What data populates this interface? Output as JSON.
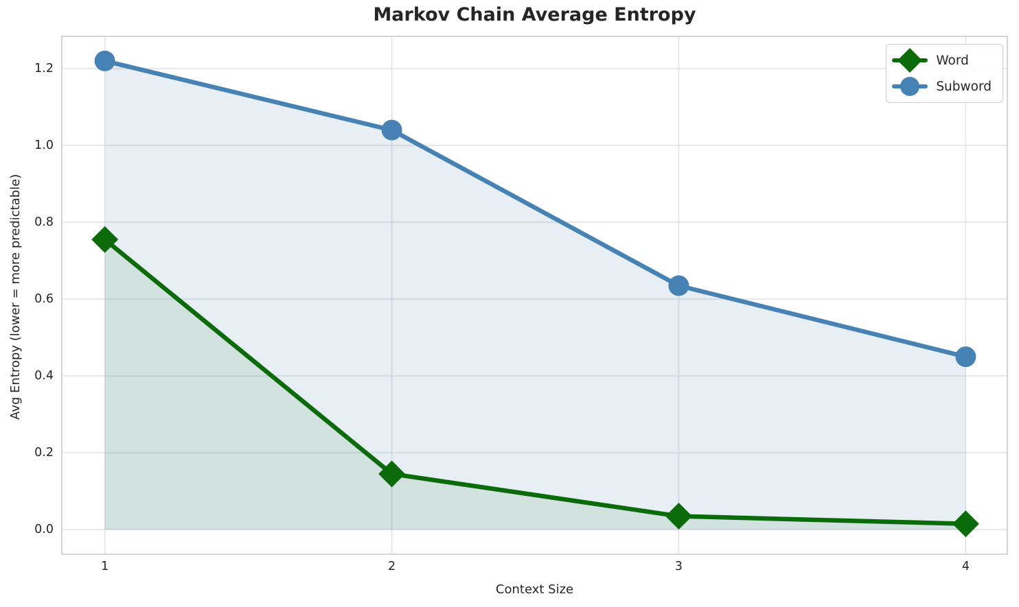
{
  "chart_data": {
    "type": "line",
    "title": "Markov Chain Average Entropy",
    "xlabel": "Context Size",
    "ylabel": "Avg Entropy (lower = more predictable)",
    "x": [
      1,
      2,
      3,
      4
    ],
    "series": [
      {
        "name": "Word",
        "values": [
          0.755,
          0.145,
          0.035,
          0.015
        ],
        "color": "#0b6b0b",
        "marker": "diamond",
        "fill_to_zero": true,
        "fill_alpha": 0.1
      },
      {
        "name": "Subword",
        "values": [
          1.22,
          1.04,
          0.635,
          0.45
        ],
        "color": "#4682b4",
        "marker": "circle",
        "fill_to_zero": true,
        "fill_alpha": 0.13
      }
    ],
    "xticks": [
      "1",
      "2",
      "3",
      "4"
    ],
    "yticks": [
      "0.0",
      "0.2",
      "0.4",
      "0.6",
      "0.8",
      "1.0",
      "1.2"
    ],
    "xlim": [
      0.85,
      4.145
    ],
    "ylim": [
      -0.064,
      1.284
    ],
    "grid": true,
    "legend_position": "top-right",
    "fill_baseline": 0
  },
  "style_colors": {
    "grid": "#e2e2e8",
    "spine": "#cccccc",
    "text": "#262626",
    "background": "#ffffff"
  }
}
